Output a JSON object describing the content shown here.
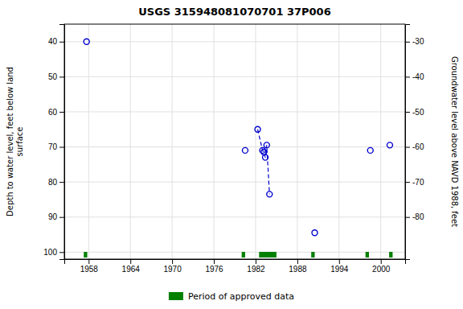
{
  "chart_data": {
    "type": "scatter",
    "title": "USGS 315948081070701 37P006",
    "xlim": [
      1954.5,
      2003.5
    ],
    "xticks": [
      1958,
      1964,
      1970,
      1976,
      1982,
      1988,
      1994,
      2000
    ],
    "ylim": [
      102,
      35
    ],
    "yticks": [
      40,
      50,
      60,
      70,
      80,
      90,
      100
    ],
    "y2lim": [
      -92,
      -25
    ],
    "y2ticks": [
      -30,
      -40,
      -50,
      -60,
      -70,
      -80
    ],
    "ylabel": "Depth to water level, feet below land\nsurface",
    "y2label": "Groundwater level above NAVD 1988, feet",
    "grid": true,
    "legend": "bottom",
    "series": [
      {
        "type": "scatter",
        "marker": "open_circle",
        "color": "#0000cc",
        "x": [
          1957.7,
          1980.5,
          1982.3,
          1983.0,
          1983.2,
          1983.4,
          1983.6,
          1984.0,
          1990.5,
          1998.5,
          2001.3
        ],
        "values": [
          40.0,
          71.0,
          65.0,
          71.0,
          71.5,
          73.0,
          69.5,
          83.5,
          94.5,
          71.0,
          69.5
        ]
      },
      {
        "type": "line",
        "line_style": "dashed",
        "color": "#0000cc",
        "x": [
          1982.3,
          1983.0,
          1983.2,
          1983.4,
          1983.6,
          1984.0
        ],
        "values": [
          65.0,
          71.0,
          71.5,
          73.0,
          69.5,
          83.5
        ]
      },
      {
        "type": "span",
        "name": "Period of approved data",
        "color": "#008000",
        "x": [
          1957.3,
          1980.0,
          1982.5,
          1990.0,
          1997.8,
          2001.2
        ],
        "width": [
          0.5,
          0.5,
          2.5,
          0.5,
          0.5,
          0.5
        ]
      }
    ]
  }
}
